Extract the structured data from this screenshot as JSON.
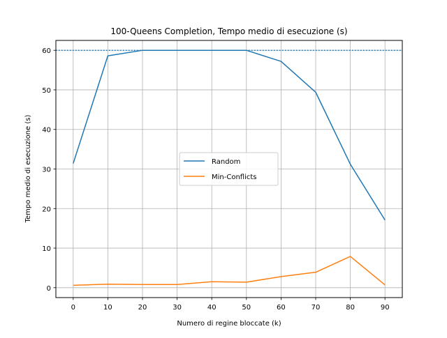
{
  "chart_data": {
    "type": "line",
    "title": "100-Queens Completion, Tempo medio di esecuzione (s)",
    "xlabel": "Numero di regine bloccate (k)",
    "ylabel": "Tempo medio di esecuzione (s)",
    "x": [
      0,
      10,
      20,
      30,
      40,
      50,
      60,
      70,
      80,
      90
    ],
    "xlim": [
      -5,
      95
    ],
    "ylim": [
      -2.5,
      62.5
    ],
    "xticks": [
      0,
      10,
      20,
      30,
      40,
      50,
      60,
      70,
      80,
      90
    ],
    "yticks": [
      0,
      10,
      20,
      30,
      40,
      50,
      60
    ],
    "grid": true,
    "legend_position": "center",
    "reference_line": {
      "y": 60,
      "style": "dotted",
      "color": "#1f77b4"
    },
    "series": [
      {
        "name": "Random",
        "color": "#1f77b4",
        "values": [
          31.4,
          58.6,
          60.0,
          60.0,
          60.0,
          60.0,
          57.2,
          49.4,
          31.2,
          17.1
        ]
      },
      {
        "name": "Min-Conflicts",
        "color": "#ff7f0e",
        "values": [
          0.6,
          0.9,
          0.8,
          0.8,
          1.5,
          1.4,
          2.8,
          3.9,
          7.9,
          0.7
        ]
      }
    ]
  }
}
